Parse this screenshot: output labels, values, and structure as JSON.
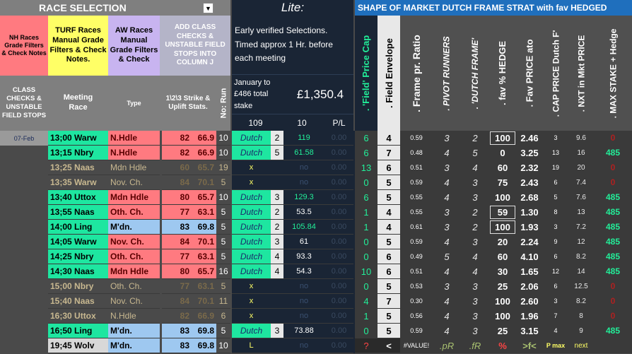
{
  "title_bar": {
    "label": "RACE SELECTION",
    "dropdown_icon": "dropdown-arrow-icon"
  },
  "lite": {
    "label": "Lite:",
    "note": "Early verified Selections. Timed approx 1 Hr. before each meeting",
    "period": "January to £486 total stake",
    "total": "£1,350.4",
    "count": "109",
    "ten": "10",
    "pl_label": "P/L"
  },
  "strategy_title": "SHAPE OF MARKET DUTCH FRAME STRAT with fav HEDGED",
  "filters": {
    "nh": "NH Races Grade Filters & Check Notes",
    "turf": "TURF Races Manual Grade Filters & Check Notes.",
    "aw": "AW Races Manual Grade Filters & Check",
    "add_class": "ADD CLASS CHECKS & UNSTABLE FIELD STOPS INTO COLUMN J"
  },
  "headers": {
    "class_checks": "CLASS CHECKS & UNSTABLE FIELD STOPS",
    "meeting_race": "Meeting Race",
    "type": "Type",
    "strike": "1\\2\\3 Strike & Uplift Stats.",
    "no_run": "No: Run",
    "field_cap": ". 'Field' Price Cap",
    "field_env": ". Field Envelope",
    "frame_ratio": ". Frame pr. Ratio",
    "pivot": ". PIVOT RUNNERS",
    "dutch_frame": ". 'DUTCH FRAME'",
    "fav_hedge": ". fav % HEDGE",
    "fav_price": ". Fav PRICE ato",
    "cap_price": ". CAP PRICE Dutch F'",
    "nxt_price": ". NXT in Mkt PRICE",
    "max_stake": ". MAX STAKE + Hedge"
  },
  "date": "07-Feb",
  "colors": {
    "green": "#1ee6a0",
    "pink": "#ff7a80",
    "blue": "#9ec8f0",
    "yellow": "#ffff66",
    "lavender": "#c8b4f0",
    "grey": "#b4b4c8"
  },
  "rows": [
    {
      "race": "13;00 Warw",
      "type": "N.Hdle",
      "s1": "82",
      "s2": "66.9",
      "run": "10",
      "status": "Dutch",
      "sn": "2",
      "val": "119",
      "pl": "0.00",
      "cap": "6",
      "env": "4",
      "ratio": "0.59",
      "pv": "3",
      "df": "2",
      "hedge": "100",
      "fav": "2.46",
      "capp": "3",
      "nxt": "9.6",
      "stake": "0",
      "rc": "green",
      "tc": "pink"
    },
    {
      "race": "13;15 Nbry",
      "type": "N.Hdle",
      "s1": "82",
      "s2": "66.9",
      "run": "10",
      "status": "Dutch",
      "sn": "5",
      "val": "61.58",
      "pl": "0.00",
      "cap": "6",
      "env": "7",
      "ratio": "0.48",
      "pv": "4",
      "df": "5",
      "hedge": "0",
      "fav": "3.25",
      "capp": "13",
      "nxt": "16",
      "stake": "485",
      "rc": "green",
      "tc": "pink"
    },
    {
      "race": "13;25 Naas",
      "type": "Mdn Hdle",
      "s1": "60",
      "s2": "65.7",
      "run": "19",
      "status": "x",
      "sn": "",
      "val": "no",
      "pl": "0.00",
      "cap": "13",
      "env": "6",
      "ratio": "0.51",
      "pv": "3",
      "df": "4",
      "hedge": "60",
      "fav": "2.32",
      "capp": "19",
      "nxt": "20",
      "stake": "0",
      "rc": "dim",
      "tc": "dim"
    },
    {
      "race": "13;35 Warw",
      "type": "Nov. Ch.",
      "s1": "84",
      "s2": "70.1",
      "run": "5",
      "status": "x",
      "sn": "",
      "val": "no",
      "pl": "0.00",
      "cap": "0",
      "env": "5",
      "ratio": "0.59",
      "pv": "4",
      "df": "3",
      "hedge": "75",
      "fav": "2.43",
      "capp": "6",
      "nxt": "7.4",
      "stake": "0",
      "rc": "dim",
      "tc": "dim"
    },
    {
      "race": "13;40 Uttox",
      "type": "Mdn Hdle",
      "s1": "80",
      "s2": "65.7",
      "run": "10",
      "status": "Dutch",
      "sn": "3",
      "val": "129.3",
      "pl": "0.00",
      "cap": "6",
      "env": "5",
      "ratio": "0.55",
      "pv": "4",
      "df": "3",
      "hedge": "100",
      "fav": "2.68",
      "capp": "5",
      "nxt": "7.6",
      "stake": "485",
      "rc": "green",
      "tc": "pink"
    },
    {
      "race": "13;55 Naas",
      "type": "Oth. Ch.",
      "s1": "77",
      "s2": "63.1",
      "run": "5",
      "status": "Dutch",
      "sn": "2",
      "val": "53.5",
      "pl": "0.00",
      "cap": "1",
      "env": "4",
      "ratio": "0.55",
      "pv": "3",
      "df": "2",
      "hedge": "59",
      "fav": "1.30",
      "capp": "8",
      "nxt": "13",
      "stake": "485",
      "rc": "green",
      "tc": "pink"
    },
    {
      "race": "14;00 Ling",
      "type": "M'dn.",
      "s1": "83",
      "s2": "69.8",
      "run": "5",
      "status": "Dutch",
      "sn": "2",
      "val": "105.84",
      "pl": "0.00",
      "cap": "1",
      "env": "4",
      "ratio": "0.61",
      "pv": "3",
      "df": "2",
      "hedge": "100",
      "fav": "1.93",
      "capp": "3",
      "nxt": "7.2",
      "stake": "485",
      "rc": "green",
      "tc": "blue"
    },
    {
      "race": "14;05 Warw",
      "type": "Nov. Ch.",
      "s1": "84",
      "s2": "70.1",
      "run": "5",
      "status": "Dutch",
      "sn": "3",
      "val": "61",
      "pl": "0.00",
      "cap": "0",
      "env": "5",
      "ratio": "0.59",
      "pv": "4",
      "df": "3",
      "hedge": "20",
      "fav": "2.24",
      "capp": "9",
      "nxt": "12",
      "stake": "485",
      "rc": "green",
      "tc": "pink"
    },
    {
      "race": "14;25 Nbry",
      "type": "Oth. Ch.",
      "s1": "77",
      "s2": "63.1",
      "run": "5",
      "status": "Dutch",
      "sn": "4",
      "val": "93.3",
      "pl": "0.00",
      "cap": "0",
      "env": "6",
      "ratio": "0.49",
      "pv": "5",
      "df": "4",
      "hedge": "60",
      "fav": "4.10",
      "capp": "6",
      "nxt": "8.2",
      "stake": "485",
      "rc": "green",
      "tc": "pink"
    },
    {
      "race": "14;30 Naas",
      "type": "Mdn Hdle",
      "s1": "80",
      "s2": "65.7",
      "run": "16",
      "status": "Dutch",
      "sn": "4",
      "val": "54.3",
      "pl": "0.00",
      "cap": "10",
      "env": "6",
      "ratio": "0.51",
      "pv": "4",
      "df": "4",
      "hedge": "30",
      "fav": "1.65",
      "capp": "12",
      "nxt": "14",
      "stake": "485",
      "rc": "green",
      "tc": "pink"
    },
    {
      "race": "15;00 Nbry",
      "type": "Oth. Ch.",
      "s1": "77",
      "s2": "63.1",
      "run": "5",
      "status": "x",
      "sn": "",
      "val": "no",
      "pl": "0.00",
      "cap": "0",
      "env": "5",
      "ratio": "0.53",
      "pv": "3",
      "df": "3",
      "hedge": "25",
      "fav": "2.06",
      "capp": "6",
      "nxt": "12.5",
      "stake": "0",
      "rc": "dim",
      "tc": "dim"
    },
    {
      "race": "15;40 Naas",
      "type": "Nov. Ch.",
      "s1": "84",
      "s2": "70.1",
      "run": "11",
      "status": "x",
      "sn": "",
      "val": "no",
      "pl": "0.00",
      "cap": "4",
      "env": "7",
      "ratio": "0.30",
      "pv": "4",
      "df": "3",
      "hedge": "100",
      "fav": "2.60",
      "capp": "3",
      "nxt": "8.2",
      "stake": "0",
      "rc": "dim",
      "tc": "dim"
    },
    {
      "race": "16;30 Uttox",
      "type": "N.Hdle",
      "s1": "82",
      "s2": "66.9",
      "run": "6",
      "status": "x",
      "sn": "",
      "val": "no",
      "pl": "0.00",
      "cap": "1",
      "env": "5",
      "ratio": "0.56",
      "pv": "4",
      "df": "3",
      "hedge": "100",
      "fav": "1.96",
      "capp": "7",
      "nxt": "8",
      "stake": "0",
      "rc": "dim",
      "tc": "dim"
    },
    {
      "race": "16;50 Ling",
      "type": "M'dn.",
      "s1": "83",
      "s2": "69.8",
      "run": "5",
      "status": "Dutch",
      "sn": "3",
      "val": "73.88",
      "pl": "0.00",
      "cap": "0",
      "env": "5",
      "ratio": "0.59",
      "pv": "4",
      "df": "3",
      "hedge": "25",
      "fav": "3.15",
      "capp": "4",
      "nxt": "9",
      "stake": "485",
      "rc": "green",
      "tc": "blue"
    },
    {
      "race": "19;45 Wolv",
      "type": "M'dn.",
      "s1": "83",
      "s2": "69.8",
      "run": "10",
      "status": "L",
      "sn": "",
      "val": "no",
      "pl": "0.00",
      "cap": "?",
      "env": "<",
      "ratio": "#VALUE!",
      "pv": ".pR",
      "df": ".fR",
      "hedge": "%",
      "fav": ">f<",
      "capp": "P max",
      "nxt": "next",
      "stake": "",
      "rc": "grey",
      "tc": "blue"
    }
  ]
}
